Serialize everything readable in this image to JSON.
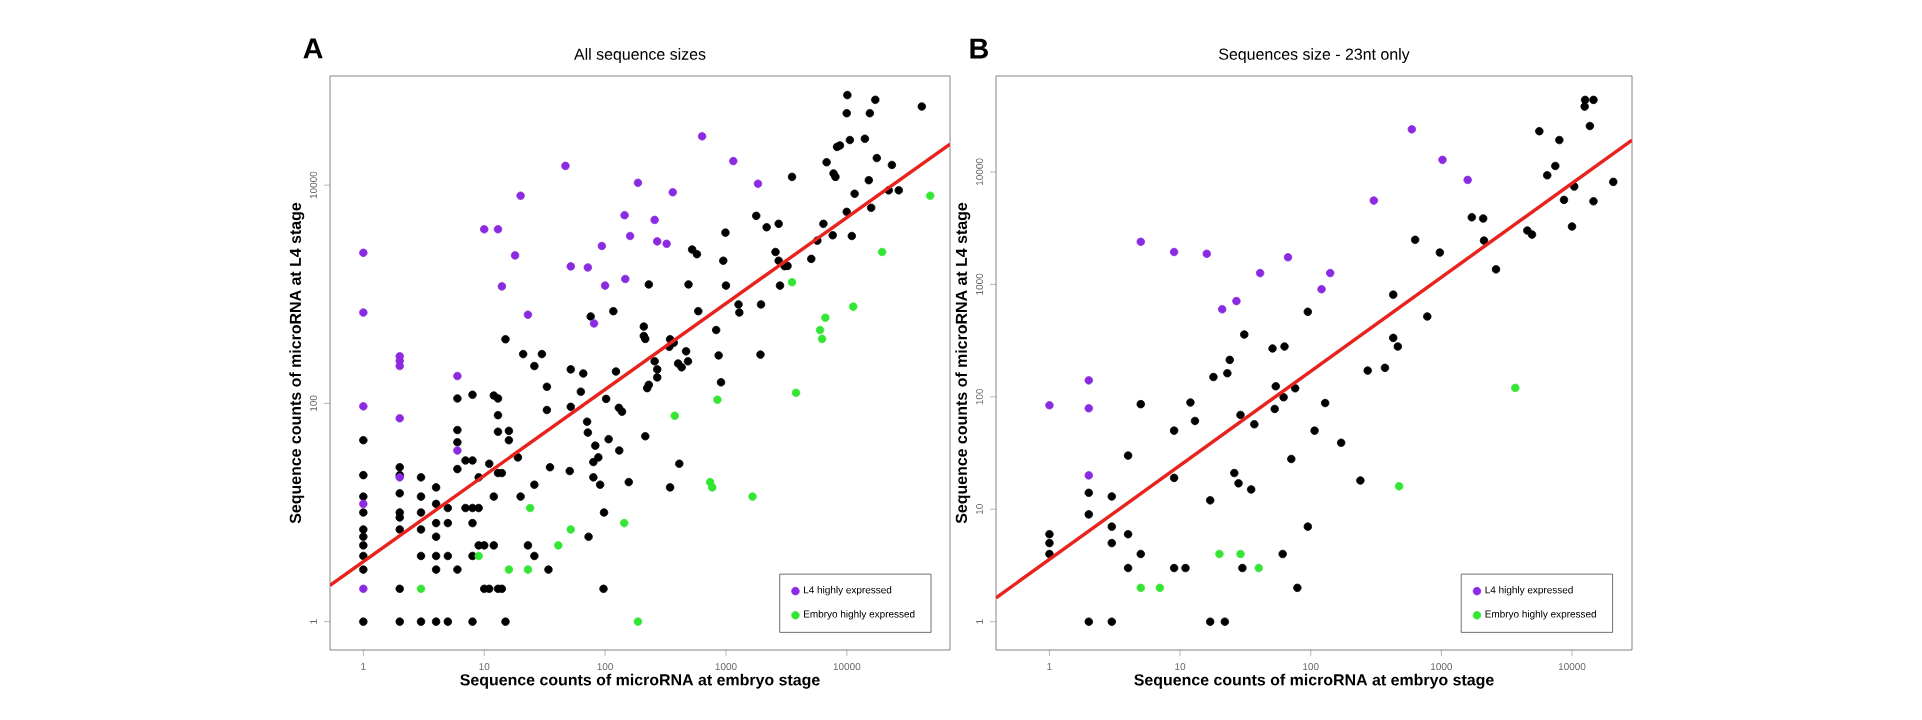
{
  "chart_data": [
    {
      "type": "scatter",
      "title": "All sequence sizes",
      "annotations": [
        "A"
      ],
      "xlabel": "Sequence counts of microRNA at embryo stage",
      "ylabel": "Sequence counts of microRNA at L4 stage",
      "log": "xy",
      "xlim": [
        0.53,
        71400
      ],
      "ylim": [
        0.55,
        100000
      ],
      "xticks": [
        1,
        10,
        100,
        1000,
        10000
      ],
      "yticks": [
        1,
        100,
        10000
      ],
      "legend": "bottom right",
      "series": [
        {
          "marker": "circle",
          "color": "#000000",
          "x": [
            1,
            1,
            1,
            1,
            1,
            1,
            1,
            1,
            1,
            1,
            2,
            2,
            2,
            2,
            2,
            2,
            2,
            2,
            3,
            3,
            3,
            3,
            3,
            3,
            4,
            4,
            4,
            4,
            4,
            4,
            4,
            5,
            5,
            5,
            5,
            6,
            6,
            6,
            6,
            6,
            7,
            7,
            8,
            8,
            8,
            8,
            8,
            8,
            9,
            9,
            9,
            10,
            10,
            12,
            12,
            12,
            13,
            13,
            13,
            16,
            16,
            11,
            13,
            14,
            11,
            13,
            14,
            15,
            15,
            19,
            20,
            21,
            26,
            26,
            30,
            23,
            26,
            34,
            33,
            33,
            35,
            52,
            52,
            51,
            63,
            71,
            72,
            66,
            73,
            76,
            80,
            88,
            83,
            80,
            91,
            98,
            97,
            102,
            107,
            117,
            123,
            130,
            138,
            131,
            157,
            209,
            209,
            215,
            215,
            223,
            230,
            230,
            257,
            270,
            270,
            345,
            340,
            345,
            370,
            402,
            430,
            468,
            485,
            411,
            490,
            525,
            575,
            590,
            830,
            870,
            910,
            950,
            990,
            1000,
            1270,
            1290,
            1780,
            1930,
            1950,
            2170,
            2730,
            2570,
            2730,
            2800,
            3060,
            3230,
            3520,
            5080,
            5700,
            6400,
            6800,
            7640,
            7760,
            8050,
            8300,
            8770,
            10100,
            9980,
            9980,
            11000,
            10600,
            11600,
            14100,
            15200,
            15900,
            15500,
            17200,
            17700,
            22200,
            23600,
            26900,
            41700
          ],
          "values": [
            46,
            22,
            14,
            10,
            7,
            6,
            5,
            4,
            3,
            1,
            26,
            22,
            15,
            10,
            9,
            7,
            2,
            1,
            21,
            14,
            10,
            7,
            4,
            1,
            17,
            12,
            8,
            6,
            4,
            3,
            1,
            11,
            8,
            4,
            1,
            111,
            57,
            44,
            25,
            3,
            30,
            11,
            120,
            30,
            11,
            8,
            4,
            1,
            21,
            11,
            5,
            5,
            2,
            14,
            5,
            118,
            111,
            78,
            55,
            56,
            46,
            28,
            23,
            23,
            2,
            2,
            2,
            387,
            1,
            32,
            14,
            283,
            220,
            18,
            283,
            5,
            4,
            3,
            142,
            87,
            26,
            205,
            93,
            24,
            128,
            68,
            54,
            188,
            6,
            626,
            29,
            32,
            41,
            21,
            18,
            10,
            2,
            110,
            47,
            700,
            196,
            91,
            84,
            37,
            19,
            506,
            415,
            390,
            50,
            138,
            148,
            1230,
            243,
            173,
            205,
            17,
            330,
            387,
            360,
            232,
            214,
            300,
            243,
            28,
            1230,
            2570,
            2330,
            700,
            470,
            275,
            156,
            2030,
            3670,
            1200,
            807,
            680,
            5230,
            280,
            807,
            4110,
            4420,
            2440,
            2030,
            1200,
            1810,
            1820,
            11900,
            2110,
            3100,
            4420,
            16200,
            3470,
            12800,
            11900,
            22400,
            23100,
            66800,
            45600,
            5690,
            3420,
            25900,
            8340,
            26600,
            11100,
            6200,
            45600,
            60500,
            17700,
            8960,
            15300,
            8960,
            52500
          ]
        },
        {
          "name": "L4 highly expressed",
          "marker": "circle",
          "color": "#8a2be2",
          "x": [
            1,
            1,
            1,
            1,
            1,
            2,
            2,
            2,
            2,
            2,
            6,
            6,
            10,
            13,
            14,
            18,
            20,
            23,
            47,
            52,
            72,
            81,
            94,
            100,
            145,
            147,
            161,
            187,
            257,
            270,
            323,
            363,
            635,
            1150,
            1840
          ],
          "values": [
            2400,
            680,
            94,
            12,
            2,
            270,
            245,
            220,
            73,
            21,
            178,
            37,
            3940,
            3940,
            1180,
            2270,
            8000,
            650,
            15000,
            1800,
            1760,
            540,
            2770,
            1200,
            5300,
            1380,
            3420,
            10500,
            4800,
            3050,
            2900,
            8600,
            28000,
            16600,
            10300
          ]
        },
        {
          "name": "Embryo highly expressed",
          "marker": "circle",
          "color": "#33e633",
          "x": [
            3,
            9,
            16,
            24,
            23,
            41,
            52,
            144,
            187,
            377,
            740,
            770,
            850,
            1660,
            3520,
            3800,
            6000,
            6240,
            6640,
            11300,
            19600,
            49000
          ],
          "values": [
            2,
            4,
            3,
            11,
            3,
            5,
            7,
            8,
            1,
            77,
            19,
            17,
            108,
            14,
            1290,
            125,
            470,
            390,
            610,
            770,
            2440,
            8000
          ]
        },
        {
          "type": "line",
          "marker": "none",
          "color": "#e8231e",
          "x": [
            0.53,
            71400
          ],
          "values": [
            2.15,
            23800
          ]
        }
      ]
    },
    {
      "type": "scatter",
      "title": "Sequences size - 23nt only",
      "annotations": [
        "B"
      ],
      "xlabel": "Sequence counts of microRNA at embryo stage",
      "ylabel": "Sequence counts of microRNA at L4 stage",
      "log": "xy",
      "xlim": [
        0.39,
        28800
      ],
      "ylim": [
        0.56,
        71300
      ],
      "xticks": [
        1,
        10,
        100,
        1000,
        10000
      ],
      "yticks": [
        1,
        10,
        100,
        1000,
        10000
      ],
      "legend": "bottom right",
      "series": [
        {
          "marker": "circle",
          "color": "#000000",
          "x": [
            1,
            1,
            1,
            2,
            2,
            2,
            3,
            3,
            3,
            3,
            4,
            4,
            4,
            5,
            5,
            9,
            9,
            9,
            11,
            12,
            13,
            17,
            17,
            22,
            18,
            23,
            24,
            26,
            28,
            31,
            30,
            29,
            35,
            37,
            51,
            54,
            53,
            61,
            63,
            62,
            71,
            76,
            79,
            95,
            95,
            107,
            129,
            171,
            240,
            273,
            370,
            428,
            428,
            464,
            630,
            780,
            973,
            1710,
            2090,
            2120,
            2620,
            4550,
            4940,
            5620,
            6460,
            7450,
            8000,
            8680,
            10000,
            10400,
            12500,
            12600,
            13700,
            14600,
            14600,
            20700
          ],
          "values": [
            6,
            5,
            4,
            14,
            9,
            1,
            13,
            7,
            5,
            1,
            30,
            6,
            3,
            4,
            86,
            50,
            19,
            3,
            3,
            89,
            61,
            12,
            1,
            1,
            150,
            162,
            213,
            21,
            17,
            358,
            3,
            69,
            15,
            57,
            269,
            124,
            78,
            4,
            280,
            99,
            28,
            119,
            2,
            570,
            7,
            50,
            88,
            39,
            18,
            171,
            181,
            810,
            334,
            280,
            2490,
            518,
            1920,
            3950,
            3850,
            2450,
            1360,
            3010,
            2770,
            23000,
            9330,
            11300,
            19200,
            5640,
            3270,
            7410,
            38100,
            43700,
            25600,
            43700,
            5480,
            8150
          ]
        },
        {
          "name": "L4 highly expressed",
          "marker": "circle",
          "color": "#8a2be2",
          "x": [
            1,
            2,
            2,
            2,
            5,
            9,
            16,
            21,
            27,
            41,
            67,
            121,
            141,
            304,
            594,
            1020,
            1590
          ],
          "values": [
            84,
            140,
            79,
            20,
            2390,
            1940,
            1870,
            600,
            710,
            1260,
            1740,
            906,
            1260,
            5560,
            23900,
            12800,
            8490
          ]
        },
        {
          "name": "Embryo highly expressed",
          "marker": "circle",
          "color": "#33e633",
          "x": [
            5,
            7,
            20,
            29,
            40,
            475,
            3680
          ],
          "values": [
            2,
            2,
            4,
            4,
            3,
            16,
            120
          ]
        },
        {
          "type": "line",
          "marker": "none",
          "color": "#e8231e",
          "x": [
            0.39,
            28800
          ],
          "values": [
            1.63,
            19200
          ]
        }
      ]
    }
  ]
}
